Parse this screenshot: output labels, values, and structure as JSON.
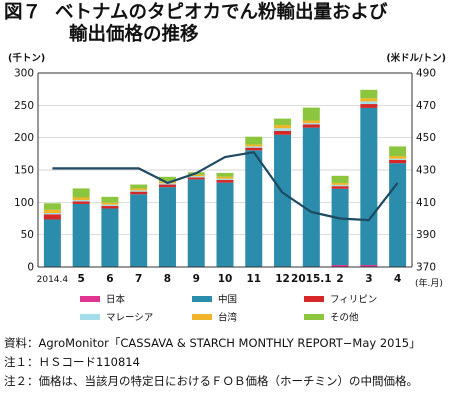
{
  "header": {
    "fig_label": "図７",
    "title_line1": "ベトナムのタピオカでん粉輸出量および",
    "title_line2": "輸出価格の推移"
  },
  "chart_data": {
    "type": "bar",
    "stacked": true,
    "categories": [
      "2014.4",
      "5",
      "6",
      "7",
      "8",
      "9",
      "10",
      "11",
      "12",
      "2015.1",
      "2",
      "3",
      "4"
    ],
    "x_unit_label": "(年.月)",
    "left_axis": {
      "unit_label": "(千トン)",
      "min": 0,
      "max": 300,
      "ticks": [
        0,
        50,
        100,
        150,
        200,
        250,
        300
      ]
    },
    "right_axis": {
      "unit_label": "(米ドル/トン)",
      "min": 370,
      "max": 490,
      "ticks": [
        370,
        390,
        410,
        430,
        450,
        470,
        490
      ]
    },
    "grid": true,
    "legend_position": "bottom",
    "series": [
      {
        "name": "日本",
        "color": "#e0338f",
        "axis": "left",
        "values": [
          0.5,
          0.5,
          0.5,
          0.5,
          0.5,
          0.5,
          0.5,
          0.5,
          0.5,
          0.5,
          3,
          3,
          0.5
        ]
      },
      {
        "name": "中国",
        "color": "#2b8cac",
        "axis": "left",
        "values": [
          73,
          97,
          90,
          112,
          123,
          135,
          130,
          180,
          204,
          215,
          118,
          243,
          160
        ]
      },
      {
        "name": "フィリピン",
        "color": "#d62828",
        "axis": "left",
        "values": [
          8,
          4,
          4,
          4,
          4,
          3,
          4,
          4,
          6,
          5,
          4,
          6,
          5
        ]
      },
      {
        "name": "マレーシア",
        "color": "#a5dde8",
        "axis": "left",
        "values": [
          2,
          2,
          2,
          2,
          2,
          2,
          2,
          2,
          4,
          2,
          2,
          4,
          2
        ]
      },
      {
        "name": "台湾",
        "color": "#f0b428",
        "axis": "left",
        "values": [
          5,
          4,
          3,
          3,
          3,
          2,
          3,
          3,
          5,
          4,
          3,
          5,
          4
        ]
      },
      {
        "name": "その他",
        "color": "#8cc63f",
        "axis": "left",
        "values": [
          10,
          14,
          9,
          6,
          7,
          4,
          6,
          12,
          10,
          20,
          11,
          13,
          15
        ]
      },
      {
        "name": "FOB価格",
        "type": "line",
        "color": "#1e4a62",
        "axis": "right",
        "values": [
          431,
          431,
          431,
          431,
          422,
          428,
          438,
          441,
          416,
          404,
          400,
          399,
          422
        ]
      }
    ]
  },
  "notes": [
    {
      "key": "資料：",
      "text": "AgroMonitor「CASSAVA & STARCH MONTHLY REPORT−May 2015」"
    },
    {
      "key": "注１：",
      "text": "ＨＳコード110814"
    },
    {
      "key": "注２：",
      "text": "価格は、当該月の特定日におけるＦＯＢ価格（ホーチミン）の中間価格。"
    }
  ]
}
